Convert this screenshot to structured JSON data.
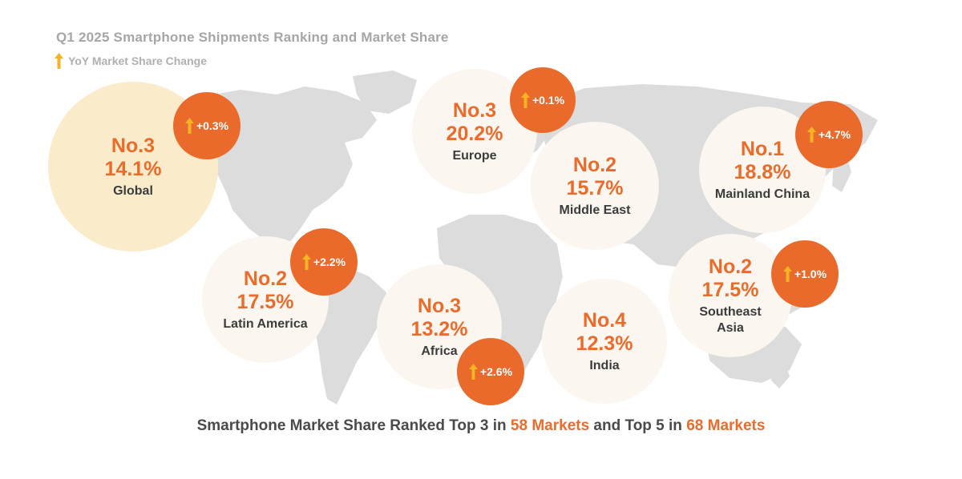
{
  "title": "Q1 2025 Smartphone Shipments Ranking and Market Share",
  "legend": {
    "icon": "up-arrow-icon",
    "label": "YoY Market Share Change"
  },
  "colors": {
    "accent": "#eb6b2a",
    "badge": "#ea6a2b",
    "arrow": "#f6b324",
    "globalBubble": "#faeccb",
    "regionBubble": "#fbf6ef",
    "map": "#dcdcdc"
  },
  "regions": [
    {
      "id": "global",
      "rank": "No.3",
      "share": "14.1%",
      "name": "Global",
      "change": "+0.3%"
    },
    {
      "id": "europe",
      "rank": "No.3",
      "share": "20.2%",
      "name": "Europe",
      "change": "+0.1%"
    },
    {
      "id": "middle-east",
      "rank": "No.2",
      "share": "15.7%",
      "name": "Middle East",
      "change": ""
    },
    {
      "id": "mainland-china",
      "rank": "No.1",
      "share": "18.8%",
      "name": "Mainland China",
      "change": "+4.7%"
    },
    {
      "id": "latin-america",
      "rank": "No.2",
      "share": "17.5%",
      "name": "Latin America",
      "change": "+2.2%"
    },
    {
      "id": "africa",
      "rank": "No.3",
      "share": "13.2%",
      "name": "Africa",
      "change": "+2.6%"
    },
    {
      "id": "india",
      "rank": "No.4",
      "share": "12.3%",
      "name": "India",
      "change": ""
    },
    {
      "id": "southeast-asia",
      "rank": "No.2",
      "share": "17.5%",
      "name": "Southeast Asia",
      "change": "+1.0%"
    }
  ],
  "footer": {
    "part1": "Smartphone Market Share Ranked Top 3 in ",
    "hl1": "58 Markets",
    "part2": " and Top 5 in ",
    "hl2": "68 Markets"
  }
}
